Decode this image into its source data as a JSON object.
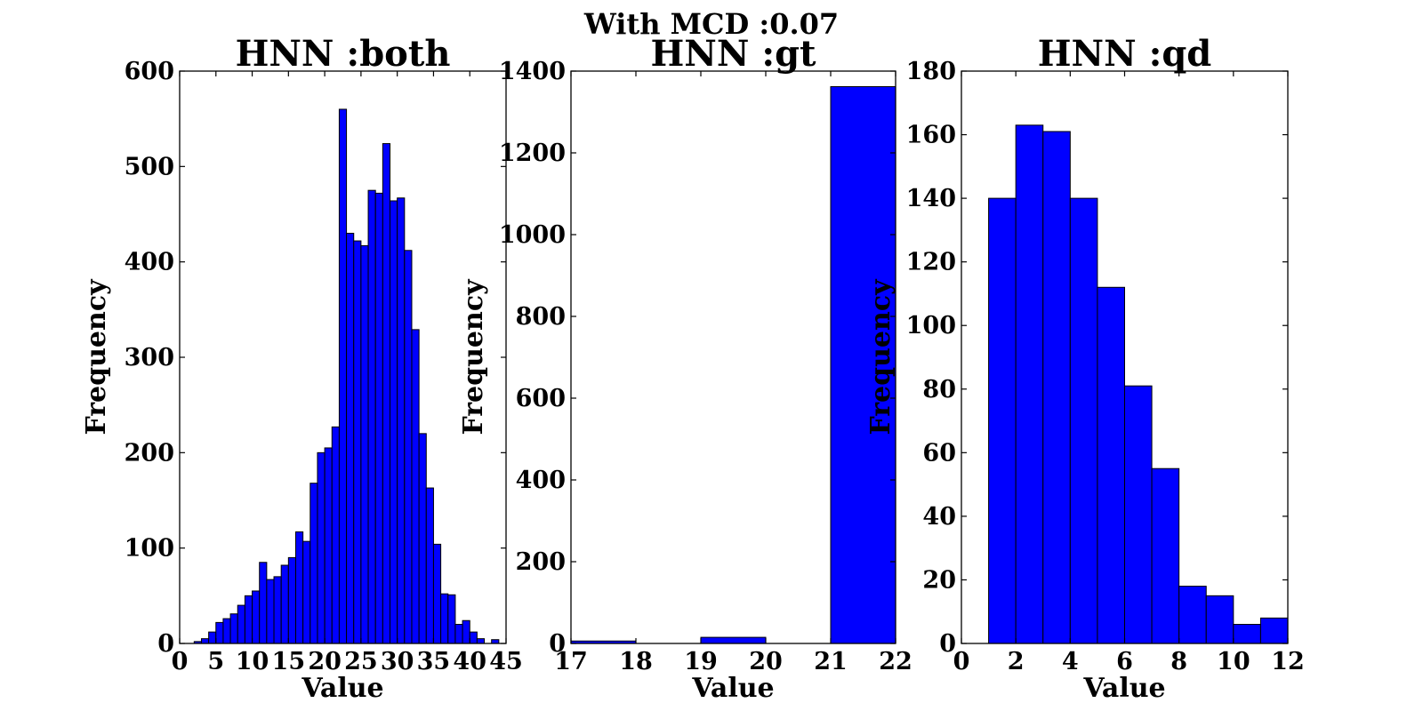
{
  "suptitle": "With MCD :0.07",
  "chart_data": [
    {
      "type": "bar",
      "title": "HNN :both",
      "xlabel": "Value",
      "ylabel": "Frequency",
      "xlim": [
        0,
        45
      ],
      "ylim": [
        0,
        600
      ],
      "xticks": [
        0,
        5,
        10,
        15,
        20,
        25,
        30,
        35,
        40,
        45
      ],
      "yticks": [
        0,
        100,
        200,
        300,
        400,
        500,
        600
      ],
      "bin_edges": [
        1,
        2,
        3,
        4,
        5,
        6,
        7,
        8,
        9,
        10,
        11,
        12,
        13,
        14,
        15,
        16,
        17,
        18,
        19,
        20,
        21,
        22,
        23,
        24,
        25,
        26,
        27,
        28,
        29,
        30,
        31,
        32,
        33,
        34,
        35,
        36,
        37,
        38,
        39,
        40,
        41,
        42,
        43,
        44
      ],
      "values": [
        0,
        2,
        5,
        12,
        22,
        26,
        31,
        40,
        50,
        55,
        85,
        67,
        70,
        82,
        90,
        117,
        107,
        168,
        200,
        205,
        227,
        560,
        430,
        422,
        417,
        475,
        472,
        524,
        464,
        467,
        412,
        329,
        220,
        163,
        104,
        52,
        51,
        20,
        24,
        12,
        5,
        0,
        4
      ],
      "color": "#0000ff"
    },
    {
      "type": "bar",
      "title": "HNN :gt",
      "xlabel": "Value",
      "ylabel": "Frequency",
      "xlim": [
        17,
        22
      ],
      "ylim": [
        0,
        1400
      ],
      "xticks": [
        17,
        18,
        19,
        20,
        21,
        22
      ],
      "yticks": [
        0,
        200,
        400,
        600,
        800,
        1000,
        1200,
        1400
      ],
      "bin_edges": [
        17,
        18,
        19,
        20,
        21,
        22
      ],
      "values": [
        6,
        0,
        15,
        0,
        1362
      ],
      "color": "#0000ff"
    },
    {
      "type": "bar",
      "title": "HNN :qd",
      "xlabel": "Value",
      "ylabel": "Frequency",
      "xlim": [
        0,
        12
      ],
      "ylim": [
        0,
        180
      ],
      "xticks": [
        0,
        2,
        4,
        6,
        8,
        10,
        12
      ],
      "yticks": [
        0,
        20,
        40,
        60,
        80,
        100,
        120,
        140,
        160,
        180
      ],
      "bin_edges": [
        1,
        2,
        3,
        4,
        5,
        6,
        7,
        8,
        9,
        10,
        11,
        12
      ],
      "values": [
        140,
        163,
        161,
        140,
        112,
        81,
        55,
        18,
        15,
        6,
        8
      ],
      "color": "#0000ff"
    }
  ]
}
